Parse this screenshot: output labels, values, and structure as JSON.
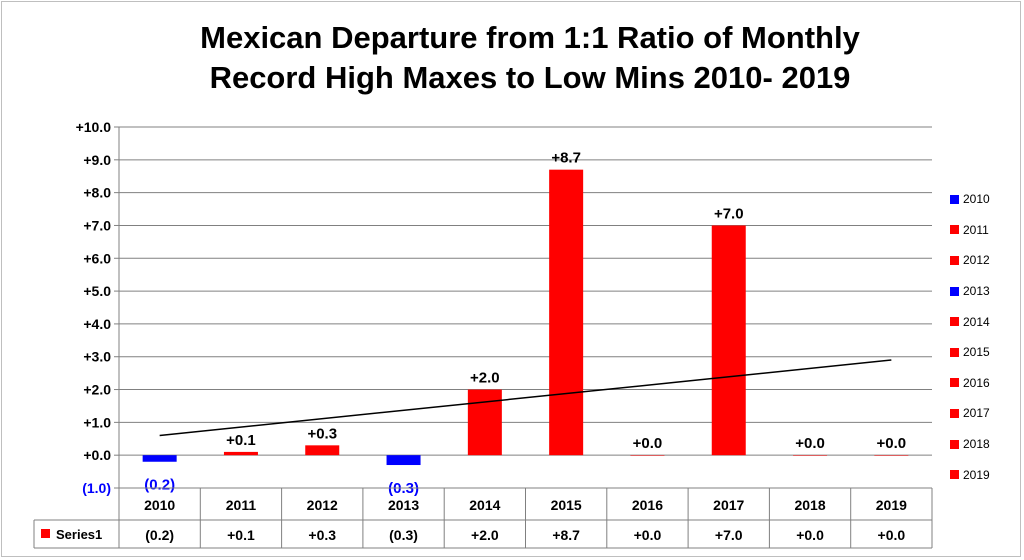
{
  "chart_data": {
    "type": "bar",
    "title": [
      "Mexican Departure from 1:1 Ratio of Monthly",
      "Record High Maxes to Low Mins 2010- 2019"
    ],
    "categories": [
      "2010",
      "2011",
      "2012",
      "2013",
      "2014",
      "2015",
      "2016",
      "2017",
      "2018",
      "2019"
    ],
    "values": [
      -0.2,
      0.1,
      0.3,
      -0.3,
      2.0,
      8.7,
      0.0,
      7.0,
      0.0,
      0.0
    ],
    "data_labels": [
      "(0.2)",
      "+0.1",
      "+0.3",
      "(0.3)",
      "+2.0",
      "+8.7",
      "+0.0",
      "+7.0",
      "+0.0",
      "+0.0"
    ],
    "bar_colors": [
      "#0000ff",
      "#ff0000",
      "#ff0000",
      "#0000ff",
      "#ff0000",
      "#ff0000",
      "#ff0000",
      "#ff0000",
      "#ff0000",
      "#ff0000"
    ],
    "negative_label_color": "#0000ff",
    "positive_label_color": "#000000",
    "ylim": [
      -1.0,
      10.0
    ],
    "yticks": [
      10,
      9,
      8,
      7,
      6,
      5,
      4,
      3,
      2,
      1,
      0,
      -1
    ],
    "ytick_labels": [
      "+10.0",
      "+9.0",
      "+8.0",
      "+7.0",
      "+6.0",
      "+5.0",
      "+4.0",
      "+3.0",
      "+2.0",
      "+1.0",
      "+0.0",
      "(1.0)"
    ],
    "grid": true,
    "trendline": {
      "type": "linear",
      "start_value": 0.6,
      "end_value": 2.9
    },
    "data_table": {
      "series_name": "Series1",
      "series_color": "#ff0000"
    },
    "legend": {
      "placement": "right",
      "entries": [
        {
          "label": "2010",
          "color": "#0000ff"
        },
        {
          "label": "2011",
          "color": "#ff0000"
        },
        {
          "label": "2012",
          "color": "#ff0000"
        },
        {
          "label": "2013",
          "color": "#0000ff"
        },
        {
          "label": "2014",
          "color": "#ff0000"
        },
        {
          "label": "2015",
          "color": "#ff0000"
        },
        {
          "label": "2016",
          "color": "#ff0000"
        },
        {
          "label": "2017",
          "color": "#ff0000"
        },
        {
          "label": "2018",
          "color": "#ff0000"
        },
        {
          "label": "2019",
          "color": "#ff0000"
        }
      ]
    }
  }
}
